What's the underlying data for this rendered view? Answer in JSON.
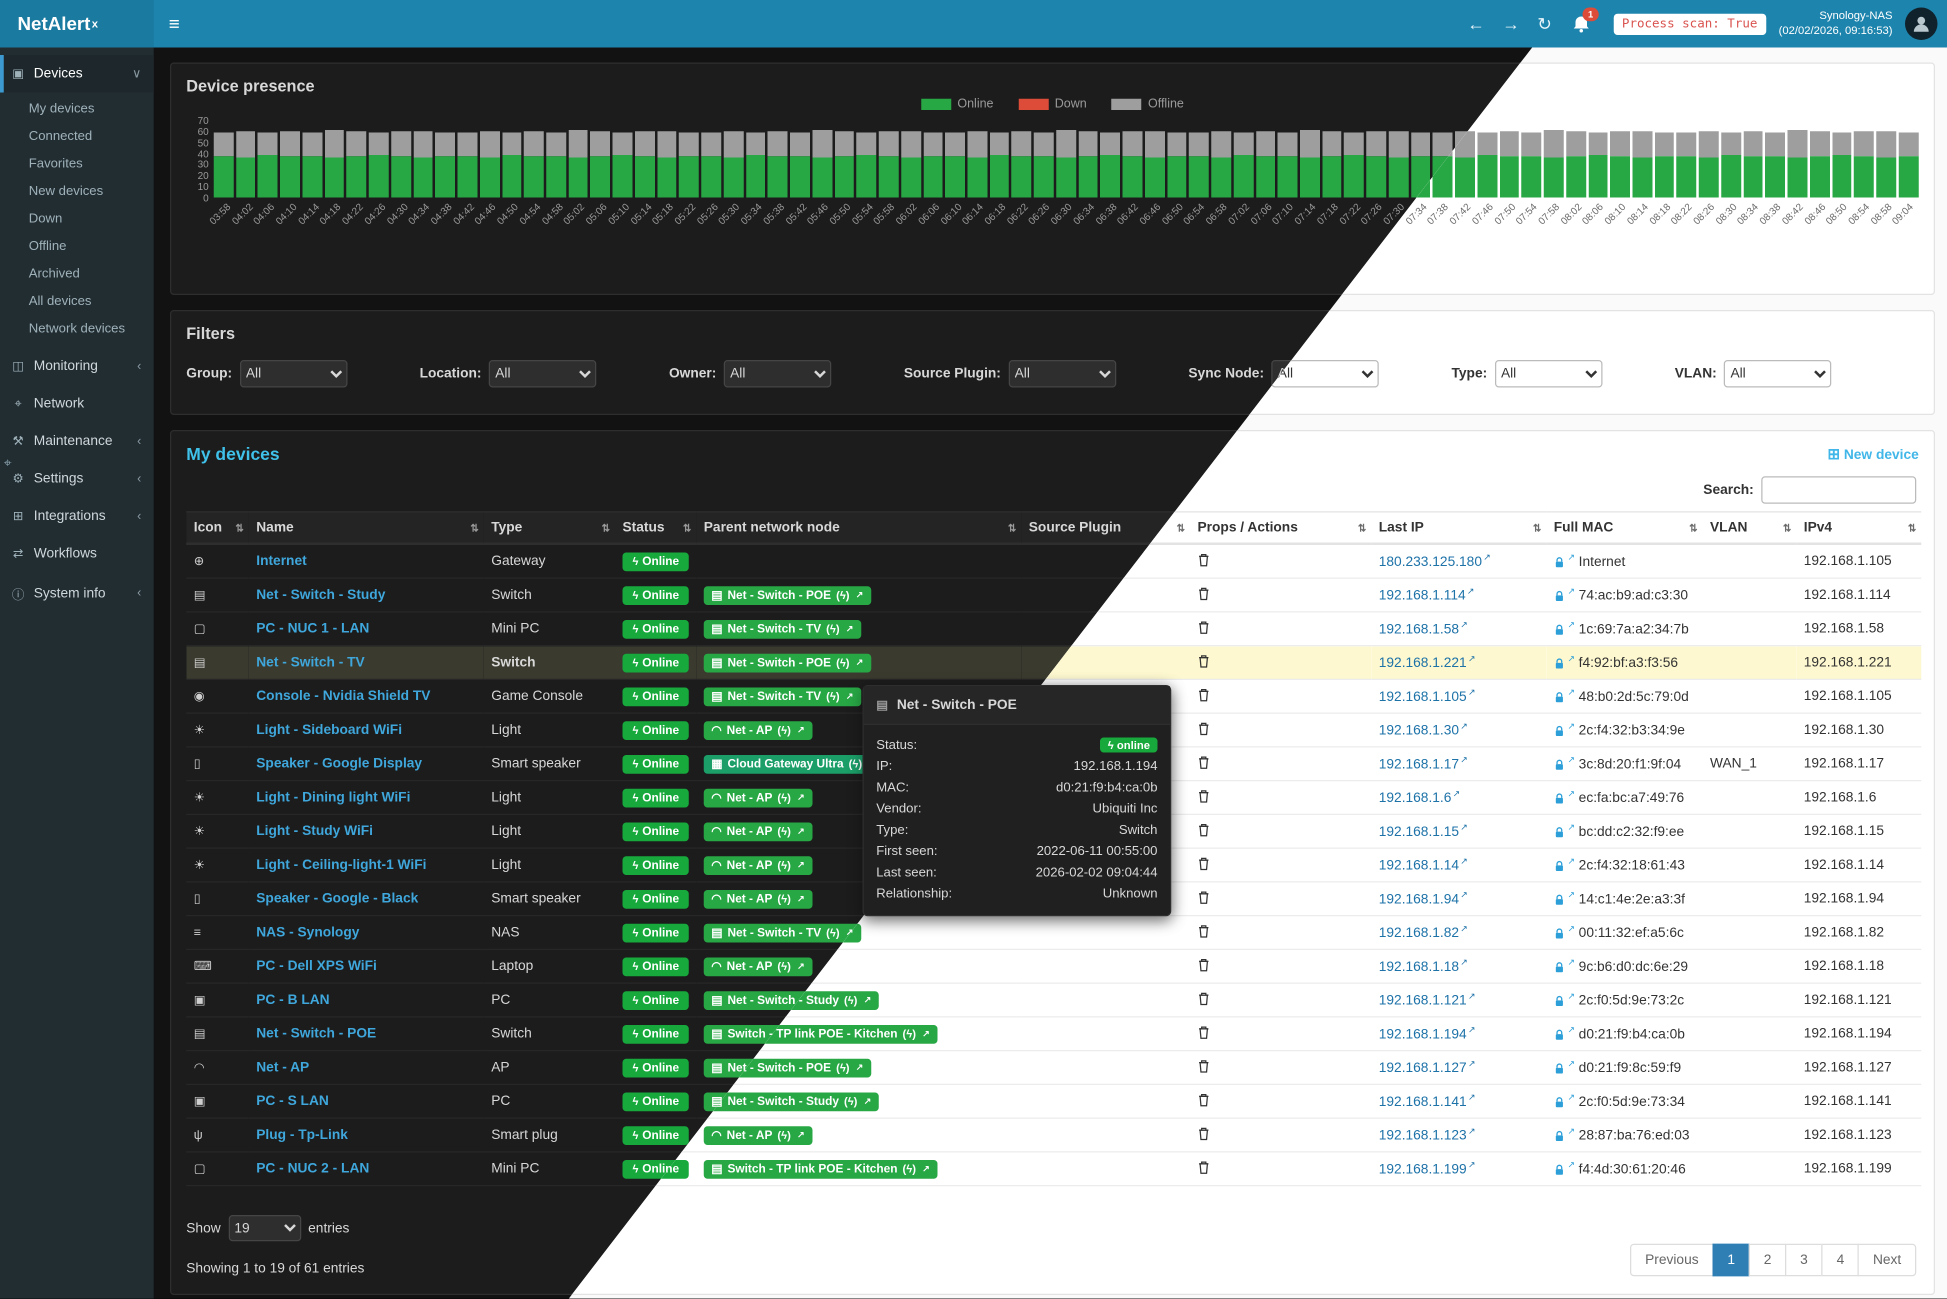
{
  "header": {
    "brand": "NetAlert",
    "brand_sup": "x",
    "notification_count": "1",
    "process_scan": "Process scan: True",
    "nas_name": "Synology-NAS",
    "nas_time": "(02/02/2026, 09:16:53)"
  },
  "sidebar": {
    "sections": [
      {
        "label": "Devices",
        "icon": "devices-icon",
        "chevron": "down",
        "active": true,
        "children": [
          "My devices",
          "Connected",
          "Favorites",
          "New devices",
          "Down",
          "Offline",
          "Archived",
          "All devices",
          "Network devices"
        ]
      },
      {
        "label": "Monitoring",
        "icon": "monitoring-icon",
        "chevron": "left"
      },
      {
        "label": "Network",
        "icon": "network-icon"
      },
      {
        "label": "Maintenance",
        "icon": "maintenance-icon",
        "chevron": "left"
      },
      {
        "label": "Settings",
        "icon": "settings-icon",
        "chevron": "left"
      },
      {
        "label": "Integrations",
        "icon": "integrations-icon",
        "chevron": "left"
      },
      {
        "label": "Workflows",
        "icon": "workflows-icon"
      },
      {
        "label": "System info",
        "icon": "systeminfo-icon",
        "chevron": "left"
      }
    ]
  },
  "presence": {
    "title": "Device presence",
    "legend": [
      {
        "label": "Online",
        "color": "#28a745"
      },
      {
        "label": "Down",
        "color": "#dd4b39"
      },
      {
        "label": "Offline",
        "color": "#9e9e9e"
      }
    ],
    "y_ticks": [
      70,
      60,
      50,
      40,
      30,
      20,
      10,
      0
    ]
  },
  "chart_data": {
    "type": "bar",
    "stacked": true,
    "title": "Device presence",
    "xlabel": "",
    "ylabel": "",
    "ylim": [
      0,
      70
    ],
    "legend_position": "top",
    "x": [
      "03:58",
      "04:02",
      "04:06",
      "04:10",
      "04:14",
      "04:18",
      "04:22",
      "04:26",
      "04:30",
      "04:34",
      "04:38",
      "04:42",
      "04:46",
      "04:50",
      "04:54",
      "04:58",
      "05:02",
      "05:06",
      "05:10",
      "05:14",
      "05:18",
      "05:22",
      "05:26",
      "05:30",
      "05:34",
      "05:38",
      "05:42",
      "05:46",
      "05:50",
      "05:54",
      "05:58",
      "06:02",
      "06:06",
      "06:10",
      "06:14",
      "06:18",
      "06:22",
      "06:26",
      "06:30",
      "06:34",
      "06:38",
      "06:42",
      "06:46",
      "06:50",
      "06:54",
      "06:58",
      "07:02",
      "07:06",
      "07:10",
      "07:14",
      "07:18",
      "07:22",
      "07:26",
      "07:30",
      "07:34",
      "07:38",
      "07:42",
      "07:46",
      "07:50",
      "07:54",
      "07:58",
      "08:02",
      "08:06",
      "08:10",
      "08:14",
      "08:18",
      "08:22",
      "08:26",
      "08:30",
      "08:34",
      "08:38",
      "08:42",
      "08:46",
      "08:50",
      "08:54",
      "08:58",
      "09:04"
    ],
    "series": [
      {
        "name": "Online",
        "color": "#28a745",
        "values": [
          37,
          36,
          38,
          37,
          37,
          36,
          37,
          38,
          37,
          36,
          37,
          37,
          36,
          38,
          37,
          37,
          36,
          37,
          38,
          37,
          36,
          37,
          37,
          36,
          38,
          37,
          37,
          36,
          37,
          38,
          37,
          36,
          37,
          37,
          36,
          38,
          37,
          37,
          36,
          37,
          38,
          37,
          36,
          37,
          37,
          36,
          38,
          37,
          37,
          36,
          37,
          38,
          37,
          36,
          37,
          37,
          36,
          38,
          37,
          37,
          36,
          37,
          38,
          37,
          36,
          37,
          37,
          36,
          38,
          37,
          37,
          36,
          37,
          38,
          37,
          36,
          37
        ]
      },
      {
        "name": "Down",
        "color": "#dd4b39",
        "values": [
          0,
          0,
          0,
          0,
          0,
          0,
          0,
          0,
          0,
          0,
          0,
          0,
          0,
          0,
          0,
          0,
          0,
          0,
          0,
          0,
          0,
          0,
          0,
          0,
          0,
          0,
          0,
          0,
          0,
          0,
          0,
          0,
          0,
          0,
          0,
          0,
          0,
          0,
          0,
          0,
          0,
          0,
          0,
          0,
          0,
          0,
          0,
          0,
          0,
          0,
          0,
          0,
          0,
          0,
          0,
          0,
          0,
          0,
          0,
          0,
          0,
          0,
          0,
          0,
          0,
          0,
          0,
          0,
          0,
          0,
          0,
          0,
          0,
          0,
          0,
          0,
          0
        ]
      },
      {
        "name": "Offline",
        "color": "#9e9e9e",
        "values": [
          22,
          24,
          21,
          23,
          22,
          25,
          23,
          21,
          23,
          24,
          22,
          22,
          24,
          21,
          23,
          22,
          25,
          23,
          21,
          23,
          24,
          22,
          22,
          24,
          21,
          23,
          22,
          25,
          23,
          21,
          23,
          24,
          22,
          22,
          24,
          21,
          23,
          22,
          25,
          23,
          21,
          23,
          24,
          22,
          22,
          24,
          21,
          23,
          22,
          25,
          23,
          21,
          23,
          24,
          22,
          22,
          24,
          21,
          23,
          22,
          25,
          23,
          21,
          23,
          24,
          22,
          22,
          24,
          21,
          23,
          22,
          25,
          23,
          21,
          23,
          24,
          22
        ]
      }
    ]
  },
  "filters": {
    "title": "Filters",
    "items": [
      {
        "label": "Group:",
        "value": "All"
      },
      {
        "label": "Location:",
        "value": "All"
      },
      {
        "label": "Owner:",
        "value": "All"
      },
      {
        "label": "Source Plugin:",
        "value": "All"
      },
      {
        "label": "Sync Node:",
        "value": "All"
      },
      {
        "label": "Type:",
        "value": "All"
      },
      {
        "label": "VLAN:",
        "value": "All"
      }
    ]
  },
  "devices": {
    "title": "My devices",
    "new_device_label": "New device",
    "search_label": "Search:",
    "search_value": "",
    "show_label": "Show",
    "page_size": "19",
    "entries_label": "entries",
    "summary": "Showing 1 to 19 of 61 entries",
    "pagination": {
      "prev": "Previous",
      "pages": [
        "1",
        "2",
        "3",
        "4"
      ],
      "active": "1",
      "next": "Next"
    },
    "table": {
      "columns": [
        "Icon",
        "Name",
        "Type",
        "Status",
        "Parent network node",
        "Source Plugin",
        "Props / Actions",
        "Last IP",
        "Full MAC",
        "VLAN",
        "IPv4"
      ],
      "rows": [
        {
          "icon": "globe-icon",
          "name": "Internet",
          "type": "Gateway",
          "status": "Online",
          "parent": null,
          "source_plugin": "",
          "last_ip": "180.233.125.180",
          "full_mac": "Internet",
          "vlan": "",
          "ipv4": "192.168.1.105"
        },
        {
          "icon": "switch-icon",
          "name": "Net - Switch - Study",
          "type": "Switch",
          "status": "Online",
          "parent": {
            "label": "Net - Switch - POE",
            "icon": "ethernet-icon"
          },
          "source_plugin": "",
          "last_ip": "192.168.1.114",
          "full_mac": "74:ac:b9:ad:c3:30",
          "vlan": "",
          "ipv4": "192.168.1.114"
        },
        {
          "icon": "minipc-icon",
          "name": "PC - NUC 1 - LAN",
          "type": "Mini PC",
          "status": "Online",
          "parent": {
            "label": "Net - Switch - TV",
            "icon": "ethernet-icon"
          },
          "source_plugin": "",
          "last_ip": "192.168.1.58",
          "full_mac": "1c:69:7a:a2:34:7b",
          "vlan": "",
          "ipv4": "192.168.1.58"
        },
        {
          "icon": "switch-icon",
          "name": "Net - Switch - TV",
          "type": "Switch",
          "status": "Online",
          "selected": true,
          "parent": {
            "label": "Net - Switch - POE",
            "icon": "ethernet-icon"
          },
          "source_plugin": "",
          "last_ip": "192.168.1.221",
          "full_mac": "f4:92:bf:a3:f3:56",
          "vlan": "",
          "ipv4": "192.168.1.221"
        },
        {
          "icon": "console-icon",
          "name": "Console - Nvidia Shield TV",
          "type": "Game Console",
          "status": "Online",
          "parent": {
            "label": "Net - Switch - TV",
            "icon": "ethernet-icon"
          },
          "source_plugin": "",
          "last_ip": "192.168.1.105",
          "full_mac": "48:b0:2d:5c:79:0d",
          "vlan": "",
          "ipv4": "192.168.1.105"
        },
        {
          "icon": "light-icon",
          "name": "Light - Sideboard WiFi",
          "type": "Light",
          "status": "Online",
          "parent": {
            "label": "Net - AP",
            "icon": "wifi-icon"
          },
          "source_plugin": "",
          "last_ip": "192.168.1.30",
          "full_mac": "2c:f4:32:b3:34:9e",
          "vlan": "",
          "ipv4": "192.168.1.30"
        },
        {
          "icon": "speaker-icon",
          "name": "Speaker - Google Display",
          "type": "Smart speaker",
          "status": "Online",
          "parent": {
            "label": "Cloud Gateway Ultra",
            "icon": "sitemap-icon",
            "variant": "alt"
          },
          "source_plugin": "",
          "last_ip": "192.168.1.17",
          "full_mac": "3c:8d:20:f1:9f:04",
          "vlan": "WAN_1",
          "ipv4": "192.168.1.17"
        },
        {
          "icon": "light-icon",
          "name": "Light - Dining light WiFi",
          "type": "Light",
          "status": "Online",
          "parent": {
            "label": "Net - AP",
            "icon": "wifi-icon"
          },
          "source_plugin": "",
          "last_ip": "192.168.1.6",
          "full_mac": "ec:fa:bc:a7:49:76",
          "vlan": "",
          "ipv4": "192.168.1.6"
        },
        {
          "icon": "light-icon",
          "name": "Light - Study WiFi",
          "type": "Light",
          "status": "Online",
          "parent": {
            "label": "Net - AP",
            "icon": "wifi-icon"
          },
          "source_plugin": "",
          "last_ip": "192.168.1.15",
          "full_mac": "bc:dd:c2:32:f9:ee",
          "vlan": "",
          "ipv4": "192.168.1.15"
        },
        {
          "icon": "light-icon",
          "name": "Light - Ceiling-light-1 WiFi",
          "type": "Light",
          "status": "Online",
          "parent": {
            "label": "Net - AP",
            "icon": "wifi-icon"
          },
          "source_plugin": "",
          "last_ip": "192.168.1.14",
          "full_mac": "2c:f4:32:18:61:43",
          "vlan": "",
          "ipv4": "192.168.1.14"
        },
        {
          "icon": "speaker-icon",
          "name": "Speaker - Google - Black",
          "type": "Smart speaker",
          "status": "Online",
          "parent": {
            "label": "Net - AP",
            "icon": "wifi-icon"
          },
          "source_plugin": "",
          "last_ip": "192.168.1.94",
          "full_mac": "14:c1:4e:2e:a3:3f",
          "vlan": "",
          "ipv4": "192.168.1.94"
        },
        {
          "icon": "nas-icon",
          "name": "NAS - Synology",
          "type": "NAS",
          "status": "Online",
          "parent": {
            "label": "Net - Switch - TV",
            "icon": "ethernet-icon"
          },
          "source_plugin": "",
          "last_ip": "192.168.1.82",
          "full_mac": "00:11:32:ef:a5:6c",
          "vlan": "",
          "ipv4": "192.168.1.82"
        },
        {
          "icon": "laptop-icon",
          "name": "PC - Dell XPS WiFi",
          "type": "Laptop",
          "status": "Online",
          "parent": {
            "label": "Net - AP",
            "icon": "wifi-icon"
          },
          "source_plugin": "",
          "last_ip": "192.168.1.18",
          "full_mac": "9c:b6:d0:dc:6e:29",
          "vlan": "",
          "ipv4": "192.168.1.18"
        },
        {
          "icon": "pc-icon",
          "name": "PC - B LAN",
          "type": "PC",
          "status": "Online",
          "parent": {
            "label": "Net - Switch - Study",
            "icon": "ethernet-icon"
          },
          "source_plugin": "",
          "last_ip": "192.168.1.121",
          "full_mac": "2c:f0:5d:9e:73:2c",
          "vlan": "",
          "ipv4": "192.168.1.121"
        },
        {
          "icon": "switch-icon",
          "name": "Net - Switch - POE",
          "type": "Switch",
          "status": "Online",
          "parent": {
            "label": "Switch - TP link POE - Kitchen",
            "icon": "ethernet-icon"
          },
          "source_plugin": "",
          "last_ip": "192.168.1.194",
          "full_mac": "d0:21:f9:b4:ca:0b",
          "vlan": "",
          "ipv4": "192.168.1.194"
        },
        {
          "icon": "ap-icon",
          "name": "Net - AP",
          "type": "AP",
          "status": "Online",
          "parent": {
            "label": "Net - Switch - POE",
            "icon": "ethernet-icon"
          },
          "source_plugin": "",
          "last_ip": "192.168.1.127",
          "full_mac": "d0:21:f9:8c:59:f9",
          "vlan": "",
          "ipv4": "192.168.1.127"
        },
        {
          "icon": "pc-icon",
          "name": "PC - S LAN",
          "type": "PC",
          "status": "Online",
          "parent": {
            "label": "Net - Switch - Study",
            "icon": "ethernet-icon"
          },
          "source_plugin": "",
          "last_ip": "192.168.1.141",
          "full_mac": "2c:f0:5d:9e:73:34",
          "vlan": "",
          "ipv4": "192.168.1.141"
        },
        {
          "icon": "plug-icon",
          "name": "Plug - Tp-Link",
          "type": "Smart plug",
          "status": "Online",
          "parent": {
            "label": "Net - AP",
            "icon": "wifi-icon"
          },
          "source_plugin": "",
          "last_ip": "192.168.1.123",
          "full_mac": "28:87:ba:76:ed:03",
          "vlan": "",
          "ipv4": "192.168.1.123"
        },
        {
          "icon": "minipc-icon",
          "name": "PC - NUC 2 - LAN",
          "type": "Mini PC",
          "status": "Online",
          "parent": {
            "label": "Switch - TP link POE - Kitchen",
            "icon": "ethernet-icon"
          },
          "source_plugin": "",
          "last_ip": "192.168.1.199",
          "full_mac": "f4:4d:30:61:20:46",
          "vlan": "",
          "ipv4": "192.168.1.199"
        }
      ]
    }
  },
  "tooltip": {
    "title": "Net - Switch - POE",
    "icon": "switch-icon",
    "fields": [
      {
        "label": "Status:",
        "value": "online",
        "pill": true
      },
      {
        "label": "IP:",
        "value": "192.168.1.194"
      },
      {
        "label": "MAC:",
        "value": "d0:21:f9:b4:ca:0b"
      },
      {
        "label": "Vendor:",
        "value": "Ubiquiti Inc"
      },
      {
        "label": "Type:",
        "value": "Switch"
      },
      {
        "label": "First seen:",
        "value": "2022-06-11 00:55:00"
      },
      {
        "label": "Last seen:",
        "value": "2026-02-02 09:04:44"
      },
      {
        "label": "Relationship:",
        "value": "Unknown"
      }
    ]
  }
}
